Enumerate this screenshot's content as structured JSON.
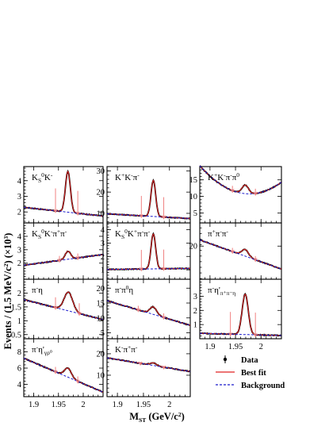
{
  "chart_data": {
    "type": "line",
    "legend": {
      "position": "bottom-right",
      "entries": [
        {
          "label": "Data",
          "style": "points",
          "color": "#000000"
        },
        {
          "label": "Best fit",
          "style": "solid",
          "color": "#e02020"
        },
        {
          "label": "Background",
          "style": "dashed",
          "color": "#1a1acc"
        }
      ]
    },
    "xlabel": "M_ST (GeV/c²)",
    "xlabel_parts": {
      "base": "M",
      "sub": "ST",
      "rest": " (GeV/c",
      "sup": "2",
      "close": ")"
    },
    "ylabel": "Events / (1.5 MeV/c²) (×10³)",
    "ylabel_parts": {
      "a": "Events / (1.5 MeV/c",
      "sup": "2",
      "b": ") (×10",
      "sup2": "3",
      "c": ")"
    },
    "xlim": [
      1.88,
      2.04
    ],
    "xticks": [
      1.9,
      1.95,
      2.0
    ],
    "xtick_labels": [
      "1.9",
      "1.95",
      "2"
    ],
    "panels": [
      {
        "id": "KsK",
        "label_parts": [
          [
            "K",
            ""
          ],
          [
            "S",
            "sub"
          ],
          [
            "0",
            "sup"
          ],
          [
            "K",
            ""
          ],
          [
            "-",
            "sup"
          ]
        ],
        "col": 0,
        "row": 0,
        "ylim": [
          1.3,
          4.9
        ],
        "yticks": [
          2,
          3,
          4
        ],
        "ytick_labels": [
          "2",
          "3",
          "4"
        ],
        "peak": {
          "mean": 1.969,
          "sigma": 0.005,
          "amp": 2.6
        },
        "background": {
          "a": 2.0,
          "b": -3.5
        },
        "signal_window": [
          1.944,
          1.989
        ]
      },
      {
        "id": "KKpi",
        "label_parts": [
          [
            "K",
            ""
          ],
          [
            "+",
            "sup"
          ],
          [
            "K",
            ""
          ],
          [
            "-",
            "sup"
          ],
          [
            "π",
            ""
          ],
          [
            "-",
            "sup"
          ]
        ],
        "col": 1,
        "row": 0,
        "ylim": [
          5.5,
          32
        ],
        "yticks": [
          10,
          20,
          30
        ],
        "ytick_labels": [
          "10",
          "20",
          "30"
        ],
        "peak": {
          "mean": 1.969,
          "sigma": 0.0045,
          "amp": 17.0
        },
        "background": {
          "a": 8.6,
          "b": -14
        },
        "signal_window": [
          1.946,
          1.989
        ]
      },
      {
        "id": "KKpipi0",
        "label_parts": [
          [
            "K",
            ""
          ],
          [
            "+",
            "sup"
          ],
          [
            "K",
            ""
          ],
          [
            "-",
            "sup"
          ],
          [
            "π",
            ""
          ],
          [
            "-",
            "sup"
          ],
          [
            "π",
            ""
          ],
          [
            "0",
            "sup"
          ]
        ],
        "col": 2,
        "row": 0,
        "ylim": [
          2,
          19
        ],
        "yticks": [
          5,
          10,
          15
        ],
        "ytick_labels": [
          "5",
          "10",
          "15"
        ],
        "peak": {
          "mean": 1.969,
          "sigma": 0.0065,
          "amp": 2.6
        },
        "background": {
          "a": 10.9,
          "b": -22,
          "c": 900
        },
        "signal_window": [
          1.944,
          1.989
        ]
      },
      {
        "id": "KsKpipi",
        "label_parts": [
          [
            "K",
            ""
          ],
          [
            "S",
            "sub"
          ],
          [
            "0",
            "sup"
          ],
          [
            "K",
            ""
          ],
          [
            "-",
            "sup"
          ],
          [
            "π",
            ""
          ],
          [
            "+",
            "sup"
          ],
          [
            "π",
            ""
          ],
          [
            "-",
            "sup"
          ]
        ],
        "col": 0,
        "row": 1,
        "ylim": [
          0.8,
          5.0
        ],
        "yticks": [
          2,
          3,
          4
        ],
        "ytick_labels": [
          "2",
          "3",
          "4"
        ],
        "peak": {
          "mean": 1.969,
          "sigma": 0.0055,
          "amp": 0.6
        },
        "background": {
          "a": 2.27,
          "b": 5.0
        },
        "signal_window": [
          1.952,
          1.989
        ]
      },
      {
        "id": "KsKpipi_b",
        "label_parts": [
          [
            "K",
            ""
          ],
          [
            "S",
            "sub"
          ],
          [
            "0",
            "sup"
          ],
          [
            "K",
            ""
          ],
          [
            "+",
            "sup"
          ],
          [
            "π",
            ""
          ],
          [
            "-",
            "sup"
          ],
          [
            "π",
            ""
          ],
          [
            "-",
            "sup"
          ]
        ],
        "col": 1,
        "row": 1,
        "ylim": [
          0.3,
          4.5
        ],
        "yticks": [
          1,
          2,
          3,
          4
        ],
        "ytick_labels": [
          "1",
          "2",
          "3",
          "4"
        ],
        "peak": {
          "mean": 1.969,
          "sigma": 0.0045,
          "amp": 2.6
        },
        "background": {
          "a": 1.07,
          "b": 0.5
        },
        "signal_window": [
          1.946,
          1.989
        ]
      },
      {
        "id": "pipipi",
        "label_parts": [
          [
            "π",
            ""
          ],
          [
            "+",
            "sup"
          ],
          [
            "π",
            ""
          ],
          [
            "-",
            "sup"
          ],
          [
            "π",
            ""
          ],
          [
            "-",
            "sup"
          ]
        ],
        "col": 2,
        "row": 1,
        "ylim": [
          10,
          27
        ],
        "yticks": [
          20
        ],
        "ytick_labels": [
          "20"
        ],
        "peak": {
          "mean": 1.969,
          "sigma": 0.0065,
          "amp": 2.0
        },
        "background": {
          "a": 17.2,
          "b": -55
        },
        "signal_window": [
          1.944,
          1.989
        ]
      },
      {
        "id": "pieta",
        "label_parts": [
          [
            "π",
            ""
          ],
          [
            "-",
            "sup"
          ],
          [
            "η",
            ""
          ]
        ],
        "col": 0,
        "row": 2,
        "ylim": [
          0.35,
          2.5
        ],
        "yticks": [
          0.5,
          1,
          1.5,
          2
        ],
        "ytick_labels": [
          "0.5",
          "1",
          "1.5",
          "2"
        ],
        "peak": {
          "mean": 1.97,
          "sigma": 0.0085,
          "amp": 0.68
        },
        "background": {
          "a": 1.38,
          "b": -4.5
        },
        "signal_window": [
          1.944,
          1.992
        ]
      },
      {
        "id": "pipi0eta",
        "label_parts": [
          [
            "π",
            ""
          ],
          [
            "-",
            "sup"
          ],
          [
            "π",
            ""
          ],
          [
            "0",
            "sup"
          ],
          [
            "η",
            ""
          ]
        ],
        "col": 1,
        "row": 2,
        "ylim": [
          3,
          23
        ],
        "yticks": [
          5,
          10,
          15,
          20
        ],
        "ytick_labels": [
          "5",
          "10",
          "15",
          "20"
        ],
        "peak": {
          "mean": 1.969,
          "sigma": 0.0065,
          "amp": 2.5
        },
        "background": {
          "a": 11.4,
          "b": -52
        },
        "signal_window": [
          1.94,
          1.989
        ]
      },
      {
        "id": "pietap_pipieta",
        "label_parts": [
          [
            "π",
            ""
          ],
          [
            "-",
            "sup"
          ],
          [
            "η'",
            ""
          ],
          [
            "π⁺π⁻η",
            "sub"
          ]
        ],
        "col": 2,
        "row": 2,
        "ylim": [
          0,
          4.2
        ],
        "yticks": [
          1,
          2,
          3
        ],
        "ytick_labels": [
          "1",
          "2",
          "3"
        ],
        "peak": {
          "mean": 1.969,
          "sigma": 0.006,
          "amp": 2.85
        },
        "background": {
          "a": 0.3,
          "b": -1.0
        },
        "signal_window": [
          1.94,
          1.989
        ]
      },
      {
        "id": "pietap_grho",
        "label_parts": [
          [
            "π",
            ""
          ],
          [
            "-",
            "sup"
          ],
          [
            "η'",
            ""
          ],
          [
            "γρ⁰",
            "sub"
          ]
        ],
        "col": 0,
        "row": 3,
        "ylim": [
          2.5,
          9.6
        ],
        "yticks": [
          4,
          6,
          8
        ],
        "ytick_labels": [
          "4",
          "6",
          "8"
        ],
        "peak": {
          "mean": 1.969,
          "sigma": 0.007,
          "amp": 1.1
        },
        "background": {
          "a": 5.0,
          "b": -26
        },
        "signal_window": [
          1.944,
          1.989
        ]
      },
      {
        "id": "Kpipi",
        "label_parts": [
          [
            "K",
            ""
          ],
          [
            "-",
            "sup"
          ],
          [
            "π",
            ""
          ],
          [
            "+",
            "sup"
          ],
          [
            "π",
            ""
          ],
          [
            "-",
            "sup"
          ]
        ],
        "col": 1,
        "row": 3,
        "ylim": [
          0,
          27
        ],
        "yticks": [
          10,
          20
        ],
        "ytick_labels": [
          "10",
          "20"
        ],
        "peak": {
          "mean": 1.969,
          "sigma": 0.006,
          "amp": 1.2
        },
        "background": {
          "a": 14.7,
          "b": -40
        },
        "signal_window": [
          1.944,
          1.989
        ]
      }
    ]
  }
}
